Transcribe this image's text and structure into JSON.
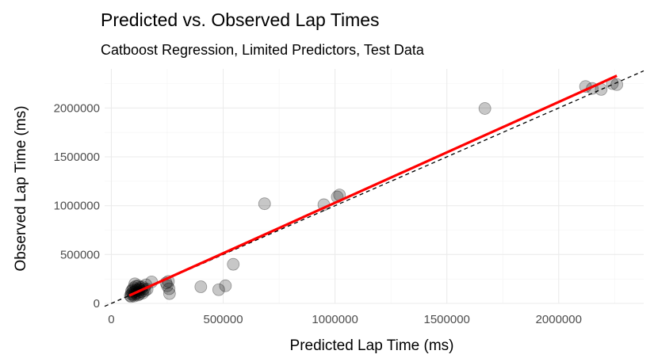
{
  "chart_data": {
    "type": "scatter",
    "title": "Predicted vs. Observed Lap Times",
    "subtitle": "Catboost Regression, Limited Predictors, Test Data",
    "xlabel": "Predicted Lap Time (ms)",
    "ylabel": "Observed Lap Time (ms)",
    "xlim": [
      -30000,
      2380000
    ],
    "ylim": [
      0,
      2400000
    ],
    "x_ticks": [
      0,
      500000,
      1000000,
      1500000,
      2000000
    ],
    "x_tick_labels": [
      "0",
      "500000",
      "1000000",
      "1500000",
      "2000000"
    ],
    "y_ticks": [
      0,
      500000,
      1000000,
      1500000,
      2000000
    ],
    "y_tick_labels": [
      "0",
      "500000",
      "1000000",
      "1500000",
      "2000000"
    ],
    "grid": true,
    "legend": "none",
    "colors": {
      "points": "#000000",
      "fit_line": "#ff0000",
      "reference_line": "#000000",
      "grid": "#ebebeb"
    },
    "fit_line": {
      "style": "solid",
      "x": [
        80000,
        2260000
      ],
      "y": [
        80000,
        2330000
      ]
    },
    "reference_line": {
      "style": "dashed",
      "x": [
        -30000,
        2380000
      ],
      "y": [
        -30000,
        2380000
      ]
    },
    "points": [
      [
        85000,
        80000
      ],
      [
        90000,
        95000
      ],
      [
        95000,
        110000
      ],
      [
        100000,
        90000
      ],
      [
        105000,
        120000
      ],
      [
        110000,
        100000
      ],
      [
        115000,
        130000
      ],
      [
        120000,
        110000
      ],
      [
        125000,
        95000
      ],
      [
        130000,
        140000
      ],
      [
        135000,
        120000
      ],
      [
        140000,
        105000
      ],
      [
        145000,
        150000
      ],
      [
        95000,
        140000
      ],
      [
        100000,
        160000
      ],
      [
        110000,
        175000
      ],
      [
        105000,
        200000
      ],
      [
        120000,
        180000
      ],
      [
        130000,
        165000
      ],
      [
        150000,
        130000
      ],
      [
        160000,
        145000
      ],
      [
        180000,
        220000
      ],
      [
        90000,
        125000
      ],
      [
        88000,
        70000
      ],
      [
        102000,
        75000
      ],
      [
        118000,
        85000
      ],
      [
        140000,
        170000
      ],
      [
        125000,
        150000
      ],
      [
        155000,
        190000
      ],
      [
        112000,
        140000
      ],
      [
        245000,
        210000
      ],
      [
        250000,
        180000
      ],
      [
        255000,
        225000
      ],
      [
        258000,
        150000
      ],
      [
        260000,
        100000
      ],
      [
        400000,
        170000
      ],
      [
        480000,
        140000
      ],
      [
        510000,
        180000
      ],
      [
        545000,
        400000
      ],
      [
        685000,
        1020000
      ],
      [
        950000,
        1010000
      ],
      [
        1010000,
        1090000
      ],
      [
        1020000,
        1110000
      ],
      [
        1670000,
        1995000
      ],
      [
        2120000,
        2220000
      ],
      [
        2150000,
        2200000
      ],
      [
        2190000,
        2190000
      ],
      [
        2240000,
        2250000
      ],
      [
        2260000,
        2240000
      ]
    ]
  }
}
